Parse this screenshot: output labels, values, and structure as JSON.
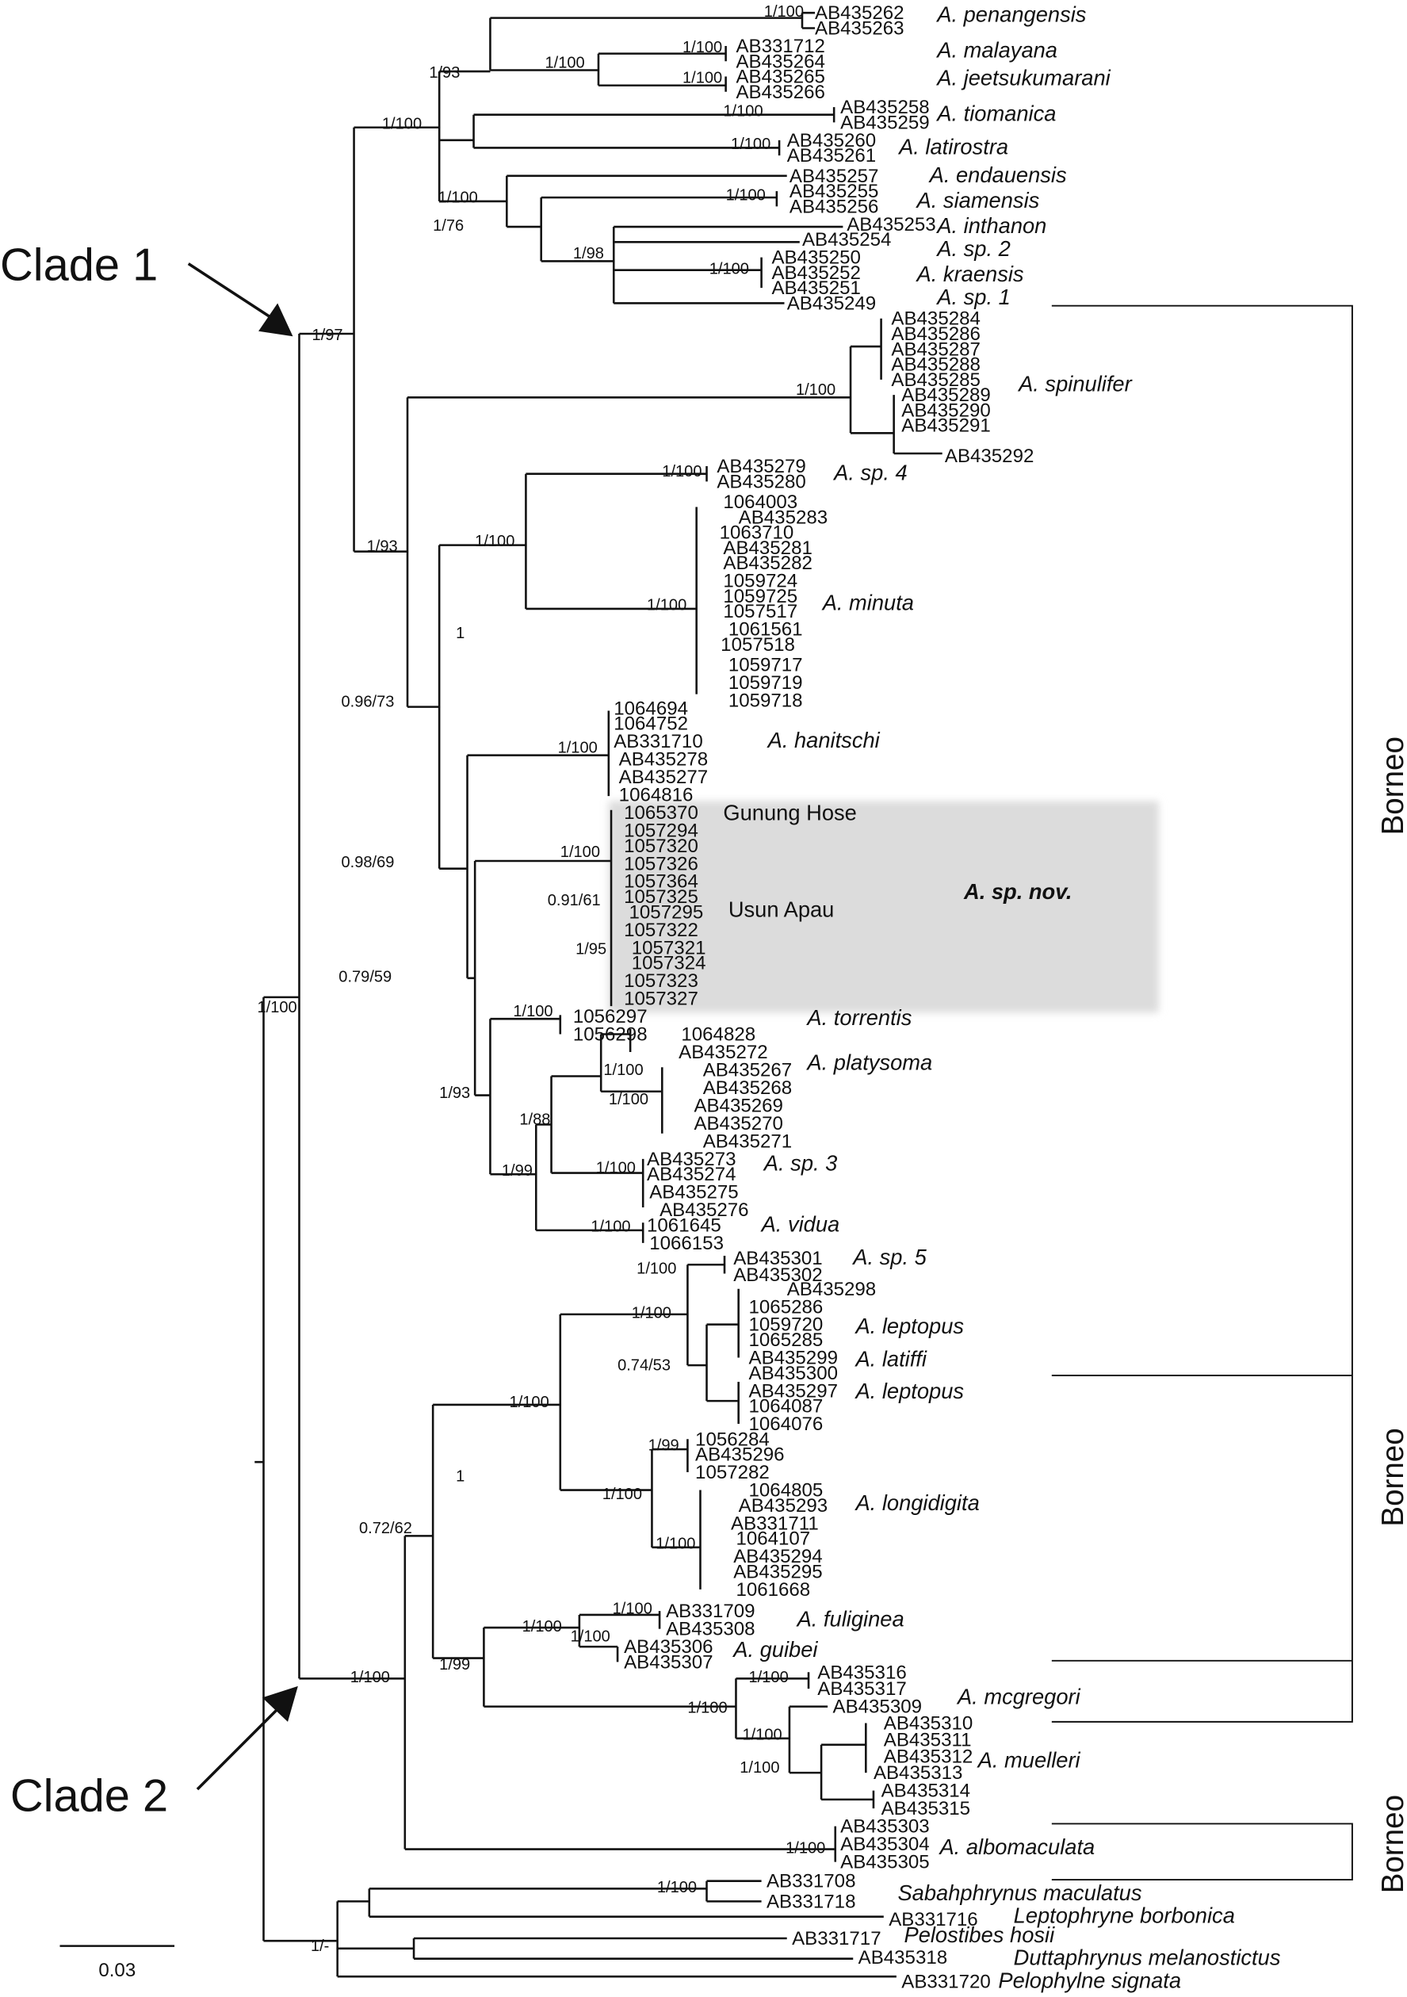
{
  "clade_labels": {
    "clade1": "Clade 1",
    "clade2": "Clade 2"
  },
  "region_labels": [
    "Borneo",
    "Borneo",
    "Borneo"
  ],
  "scale_bar": {
    "label": "0.03"
  },
  "highlight": {
    "label": "A. sp. nov.",
    "color": "#dcdcdc"
  },
  "leaves": [
    "AB435262",
    "AB435263",
    "AB331712",
    "AB435264",
    "AB435265",
    "AB435266",
    "AB435258",
    "AB435259",
    "AB435260",
    "AB435261",
    "AB435257",
    "AB435255",
    "AB435256",
    "AB435253",
    "AB435254",
    "AB435250",
    "AB435252",
    "AB435251",
    "AB435249",
    "AB435284",
    "AB435286",
    "AB435287",
    "AB435288",
    "AB435285",
    "AB435289",
    "AB435290",
    "AB435291",
    "AB435292",
    "AB435279",
    "AB435280",
    "1064003",
    "AB435283",
    "1063710",
    "AB435281",
    "AB435282",
    "1059724",
    "1059725",
    "1057517",
    "1061561",
    "1057518",
    "1059717",
    "1059719",
    "1059718",
    "1064694",
    "1064752",
    "AB331710",
    "AB435278",
    "AB435277",
    "1064816",
    "1065370",
    "1057294",
    "1057320",
    "1057326",
    "1057364",
    "1057325",
    "1057295",
    "1057322",
    "1057321",
    "1057324",
    "1057323",
    "1057327",
    "1056297",
    "1056298",
    "1064828",
    "AB435272",
    "AB435267",
    "AB435268",
    "AB435269",
    "AB435270",
    "AB435271",
    "AB435273",
    "AB435274",
    "AB435275",
    "AB435276",
    "1061645",
    "1066153",
    "AB435301",
    "AB435302",
    "AB435298",
    "1065286",
    "1059720",
    "1065285",
    "AB435299",
    "AB435300",
    "AB435297",
    "1064087",
    "1064076",
    "1056284",
    "AB435296",
    "1057282",
    "1064805",
    "AB435293",
    "AB331711",
    "1064107",
    "AB435294",
    "AB435295",
    "1061668",
    "AB331709",
    "AB435308",
    "AB435306",
    "AB435307",
    "AB435316",
    "AB435317",
    "AB435309",
    "AB435310",
    "AB435311",
    "AB435312",
    "AB435313",
    "AB435314",
    "AB435315",
    "AB435303",
    "AB435304",
    "AB435305",
    "AB331708",
    "AB331718",
    "AB331716",
    "AB331717",
    "AB435318",
    "AB331720"
  ],
  "taxa": [
    "A. penangensis",
    "A. malayana",
    "A. jeetsukumarani",
    "A. tiomanica",
    "A. latirostra",
    "A. endauensis",
    "A. siamensis",
    "A. inthanon",
    "A. sp. 2",
    "A. kraensis",
    "A. sp. 1",
    "A. spinulifer",
    "A. sp. 4",
    "A. minuta",
    "A. hanitschi",
    "A. torrentis",
    "A. platysoma",
    "A. sp. 3",
    "A. vidua",
    "A. sp. 5",
    "A. leptopus",
    "A. latiffi",
    "A. leptopus",
    "A. longidigita",
    "A. fuliginea",
    "A. guibei",
    "A. mcgregori",
    "A. muelleri",
    "A. albomaculata",
    "Sabahphrynus maculatus",
    "Leptophryne borbonica",
    "Pelostibes hosii",
    "Duttaphrynus melanostictus",
    "Pelophylne signata"
  ],
  "localities": [
    "Gunung Hose",
    "Usun Apau"
  ],
  "supports": [
    "1/100",
    "1/93",
    "1/100",
    "1/100",
    "1/100",
    "1/100",
    "1/100",
    "1/100",
    "1/100",
    "1/76",
    "1/100",
    "1/98",
    "1/100",
    "1/97",
    "1/100",
    "1/100",
    "1/93",
    "1/100",
    "1/100",
    "1",
    "0.96/73",
    "1/100",
    "1/100",
    "0.98/69",
    "0.91/61",
    "1/95",
    "0.79/59",
    "1/100",
    "1/100",
    "1/100",
    "1/88",
    "1/93",
    "1/99",
    "1/100",
    "1/100",
    "1/100",
    "1/100",
    "0.74/53",
    "1/100",
    "1/100",
    "1",
    "1/99",
    "1/100",
    "1/100",
    "0.72/62",
    "1/100",
    "1/100",
    "1/100",
    "1/99",
    "1/100",
    "1/100",
    "1/100",
    "1/100",
    "1/100",
    "1/100",
    "1/100",
    "1/-"
  ]
}
